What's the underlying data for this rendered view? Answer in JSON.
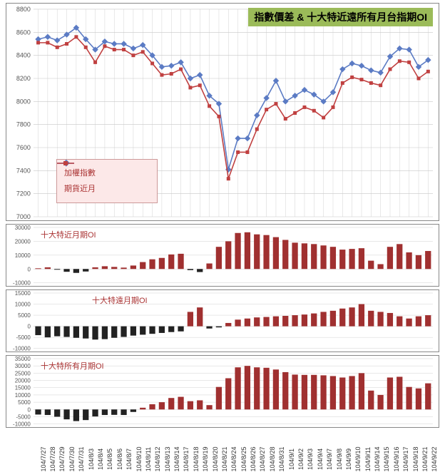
{
  "title": "指數價差 & 十大特近遠所有月台指期OI",
  "dates": [
    "104/7/27",
    "104/7/28",
    "104/7/29",
    "104/7/30",
    "104/7/31",
    "104/8/3",
    "104/8/4",
    "104/8/5",
    "104/8/6",
    "104/8/7",
    "104/8/10",
    "104/8/11",
    "104/8/12",
    "104/8/13",
    "104/8/14",
    "104/8/17",
    "104/8/18",
    "104/8/19",
    "104/8/20",
    "104/8/21",
    "104/8/24",
    "104/8/25",
    "104/8/26",
    "104/8/27",
    "104/8/28",
    "104/8/31",
    "104/9/1",
    "104/9/2",
    "104/9/3",
    "104/9/4",
    "104/9/7",
    "104/9/8",
    "104/9/9",
    "104/9/10",
    "104/9/11",
    "104/9/14",
    "104/9/15",
    "104/9/16",
    "104/9/17",
    "104/9/18",
    "104/9/21",
    "104/9/22"
  ],
  "main": {
    "ymin": 7000,
    "ymax": 8800,
    "ystep": 200,
    "grid_color": "#c8c8c8",
    "bg": "#ffffff",
    "series": [
      {
        "name": "加權指數",
        "color": "#5b7bc4",
        "marker": "diamond",
        "values": [
          8540,
          8560,
          8530,
          8580,
          8640,
          8540,
          8450,
          8520,
          8500,
          8500,
          8460,
          8490,
          8400,
          8300,
          8310,
          8340,
          8200,
          8230,
          8050,
          7980,
          7410,
          7680,
          7680,
          7880,
          8030,
          8180,
          8000,
          8050,
          8100,
          8060,
          8000,
          8080,
          8280,
          8330,
          8310,
          8270,
          8250,
          8390,
          8460,
          8450,
          8300,
          8360
        ]
      },
      {
        "name": "期貨近月",
        "color": "#c04040",
        "marker": "square",
        "values": [
          8510,
          8510,
          8470,
          8500,
          8560,
          8470,
          8340,
          8480,
          8450,
          8450,
          8400,
          8430,
          8330,
          8230,
          8240,
          8280,
          8120,
          8140,
          7960,
          7870,
          7330,
          7560,
          7560,
          7760,
          7930,
          7980,
          7850,
          7900,
          7950,
          7920,
          7860,
          7950,
          8160,
          8210,
          8190,
          8160,
          8140,
          8280,
          8350,
          8340,
          8200,
          8260
        ]
      }
    ],
    "legend": {
      "bg": "#fce8e8",
      "border": "#c99",
      "text": "#a33"
    }
  },
  "sub1": {
    "label": "十大特近月期OI",
    "ymin": -10000,
    "ymax": 30000,
    "ystep": 10000,
    "pos_color": "#a03030",
    "neg_color": "#222",
    "grid": "#d0d0d0",
    "label_color": "#a33",
    "values": [
      500,
      1200,
      -500,
      -2000,
      -2800,
      -1800,
      1200,
      2000,
      1500,
      1000,
      2500,
      5000,
      7000,
      8000,
      10500,
      11000,
      -800,
      -2200,
      4000,
      16000,
      20000,
      26000,
      26500,
      25000,
      24500,
      23000,
      21000,
      19000,
      18500,
      18000,
      17000,
      16000,
      14000,
      14500,
      15000,
      6000,
      3500,
      16000,
      18000,
      12000,
      10000,
      13000
    ]
  },
  "sub2": {
    "label": "十大特遠月期OI",
    "ymin": -10000,
    "ymax": 15000,
    "ystep": 5000,
    "pos_color": "#a03030",
    "neg_color": "#222",
    "grid": "#d0d0d0",
    "label_color": "#a33",
    "values": [
      -4000,
      -5000,
      -4500,
      -4800,
      -5200,
      -5500,
      -6000,
      -5800,
      -5200,
      -4800,
      -4200,
      -3800,
      -3400,
      -3000,
      -2600,
      -2300,
      6500,
      8500,
      -1000,
      -500,
      1500,
      3000,
      3500,
      4000,
      4200,
      4500,
      4700,
      5000,
      5300,
      5800,
      6500,
      7000,
      8000,
      8500,
      10000,
      7000,
      6500,
      6000,
      4500,
      3500,
      4500,
      5000
    ]
  },
  "sub3": {
    "label": "十大特所有月期OI",
    "ymin": -10000,
    "ymax": 35000,
    "ystep": 5000,
    "pos_color": "#a03030",
    "neg_color": "#222",
    "grid": "#d0d0d0",
    "label_color": "#a33",
    "values": [
      -3500,
      -3800,
      -5000,
      -6800,
      -8000,
      -7300,
      -4800,
      -3800,
      -3700,
      -3800,
      -1700,
      1200,
      3600,
      5000,
      7900,
      8700,
      5700,
      6300,
      3000,
      15500,
      21500,
      29000,
      30000,
      29000,
      28700,
      27500,
      25700,
      24000,
      23800,
      23800,
      23500,
      23000,
      22000,
      23000,
      25000,
      13000,
      10000,
      22000,
      22500,
      15500,
      14500,
      18000
    ]
  },
  "axis_fontsize": 9
}
